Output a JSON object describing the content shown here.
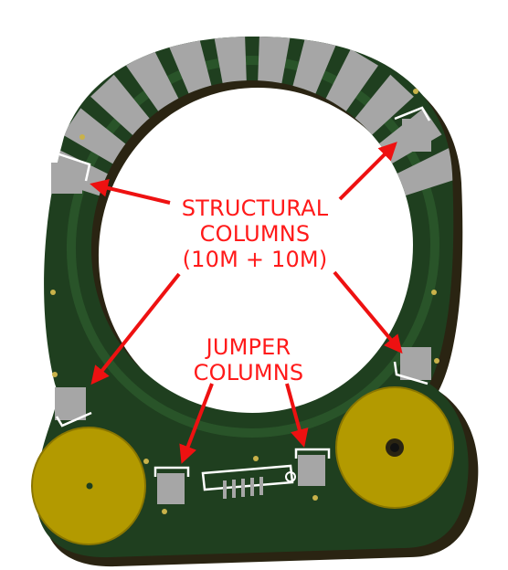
{
  "labels": {
    "structural": [
      "STRUCTURAL",
      "COLUMNS",
      "(10M + 10M)"
    ],
    "jumper": [
      "JUMPER",
      "COLUMNS"
    ]
  },
  "colors": {
    "board_green": "#1f3f1f",
    "board_edge": "#2a2412",
    "gold_pad": "#b39a00",
    "column_grey": "#a6a6a6",
    "annotation_red": "#ff1a1a"
  }
}
